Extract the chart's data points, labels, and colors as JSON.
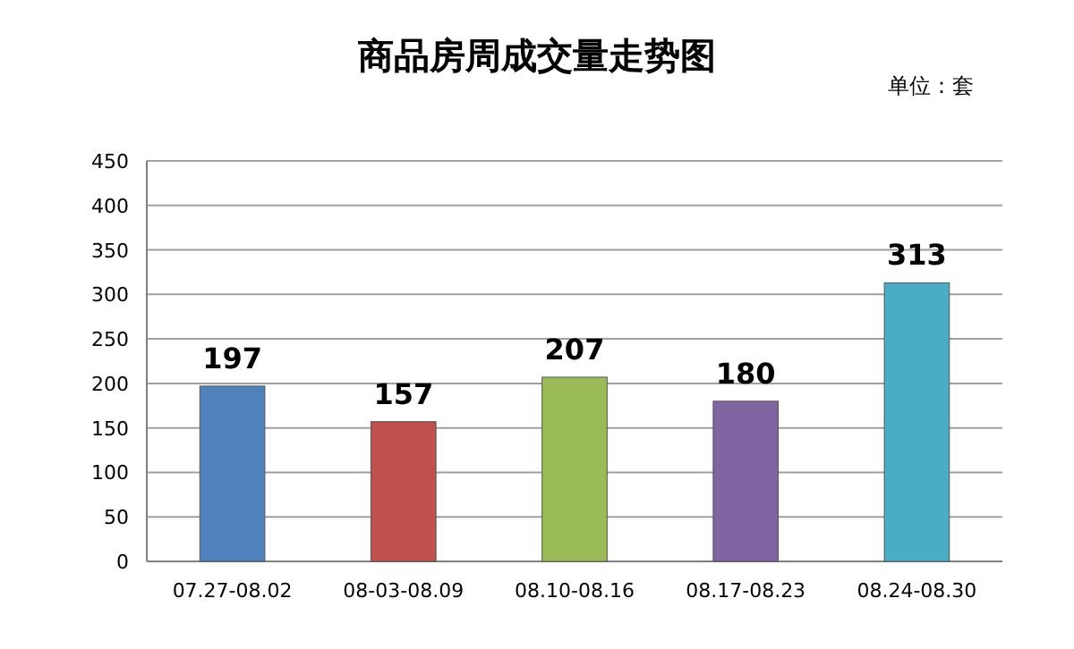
{
  "chart_data": {
    "type": "bar",
    "title": "商品房周成交量走势图",
    "annotations": [
      "单位：套"
    ],
    "categories": [
      "07.27-08.02",
      "08-03-08.09",
      "08.10-08.16",
      "08.17-08.23",
      "08.24-08.30"
    ],
    "values": [
      197,
      157,
      207,
      180,
      313
    ],
    "colors": [
      "#4f81bd",
      "#c0504d",
      "#9bbb59",
      "#8064a2",
      "#4bacc6"
    ],
    "ylim": [
      0,
      450
    ],
    "yticks": [
      0,
      50,
      100,
      150,
      200,
      250,
      300,
      350,
      400,
      450
    ],
    "grid": "y",
    "data_labels": true
  }
}
